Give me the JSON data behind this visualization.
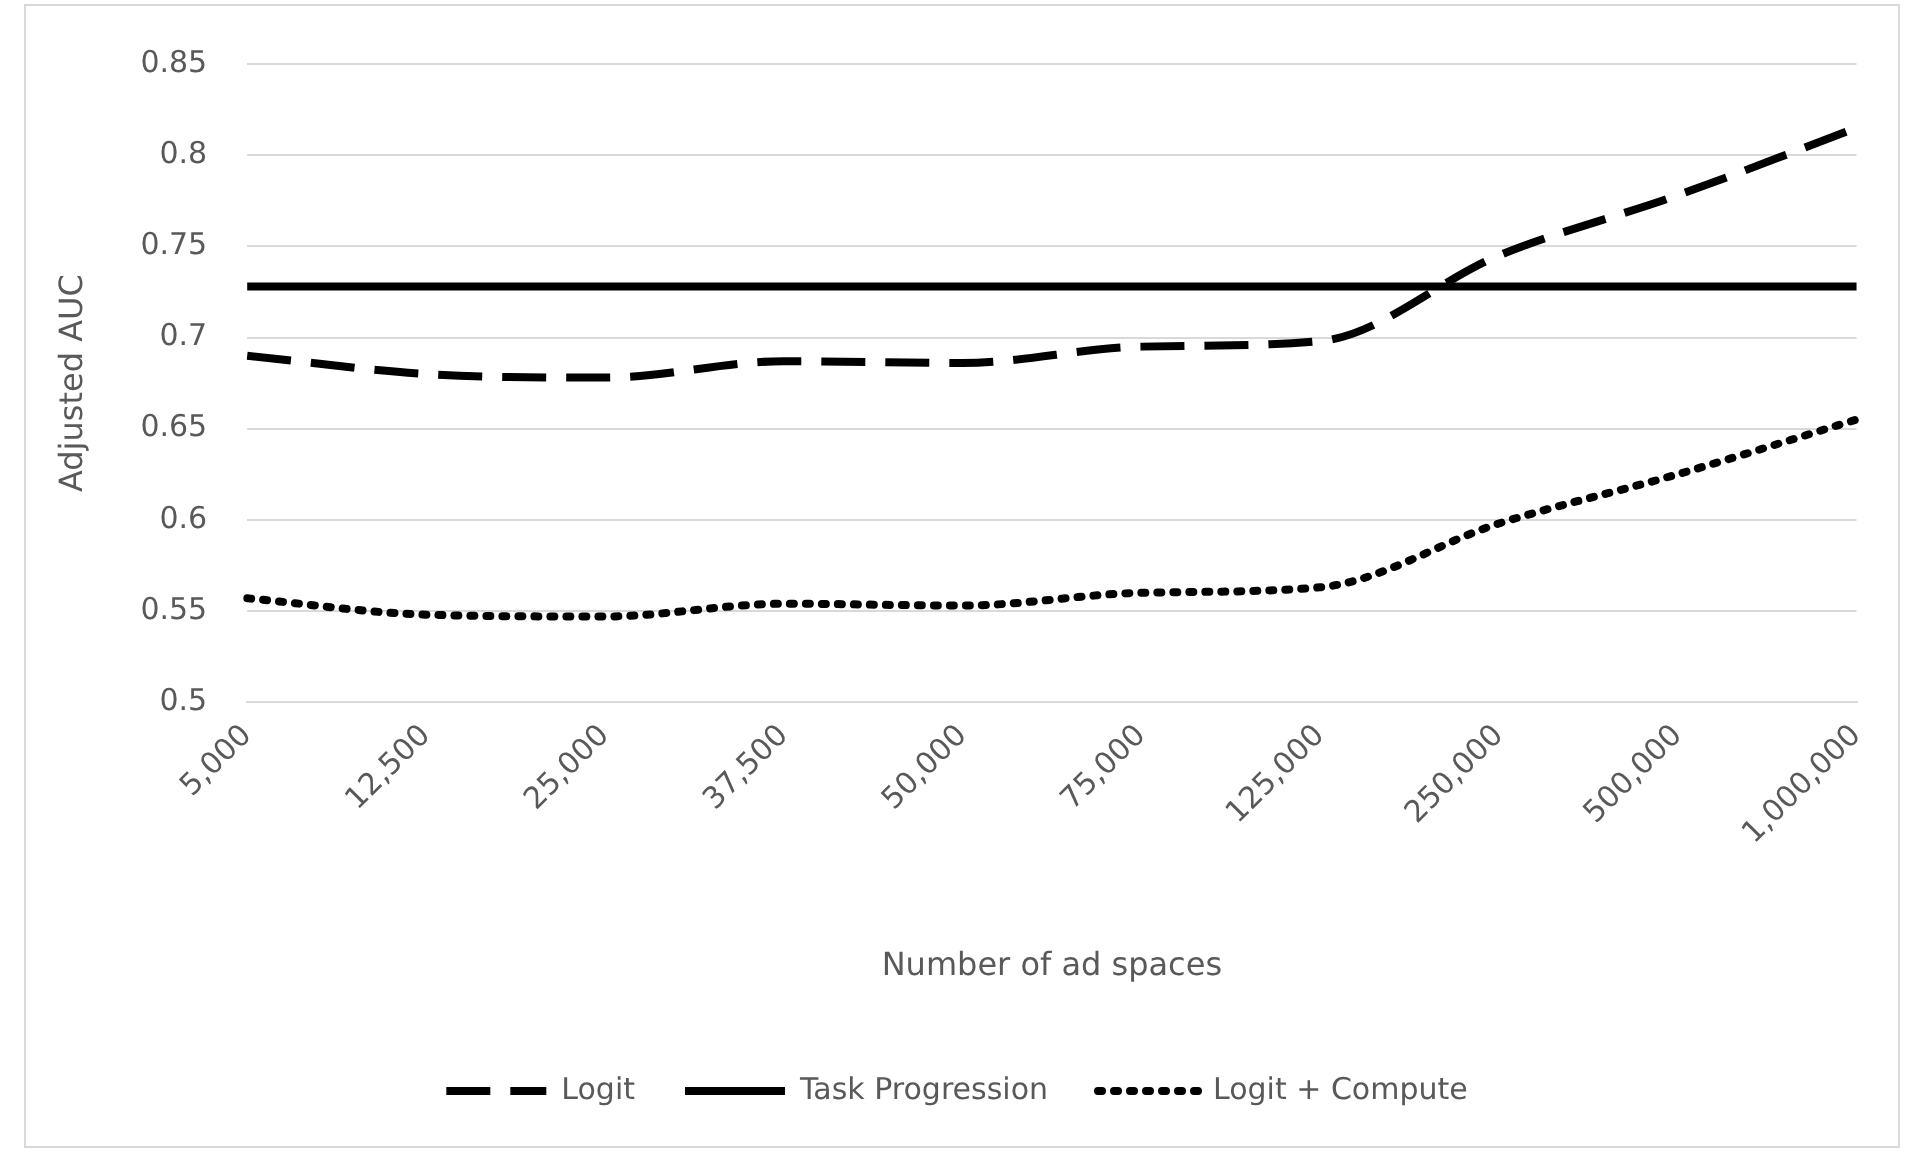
{
  "chart_data": {
    "type": "line",
    "xlabel": "Number of ad spaces",
    "ylabel": "Adjusted AUC",
    "categories": [
      "5,000",
      "12,500",
      "25,000",
      "37,500",
      "50,000",
      "75,000",
      "125,000",
      "250,000",
      "500,000",
      "1,000,000"
    ],
    "series": [
      {
        "name": "Logit",
        "color": "#000000",
        "line_style": "dashed",
        "values": [
          0.69,
          0.68,
          0.678,
          0.687,
          0.686,
          0.695,
          0.698,
          0.745,
          0.778,
          0.815
        ]
      },
      {
        "name": "Task Progression",
        "color": "#000000",
        "line_style": "solid",
        "values": [
          0.728,
          0.728,
          0.728,
          0.728,
          0.728,
          0.728,
          0.728,
          0.728,
          0.728,
          0.728
        ]
      },
      {
        "name": "Logit + Compute",
        "color": "#000000",
        "line_style": "dotted",
        "values": [
          0.557,
          0.548,
          0.547,
          0.554,
          0.553,
          0.56,
          0.563,
          0.598,
          0.625,
          0.655
        ]
      }
    ],
    "ylim": [
      0.5,
      0.85
    ],
    "yticks": [
      0.5,
      0.55,
      0.6,
      0.65,
      0.7,
      0.75,
      0.8,
      0.85
    ],
    "grid": "y",
    "legend": "bottom",
    "marker": "none"
  }
}
